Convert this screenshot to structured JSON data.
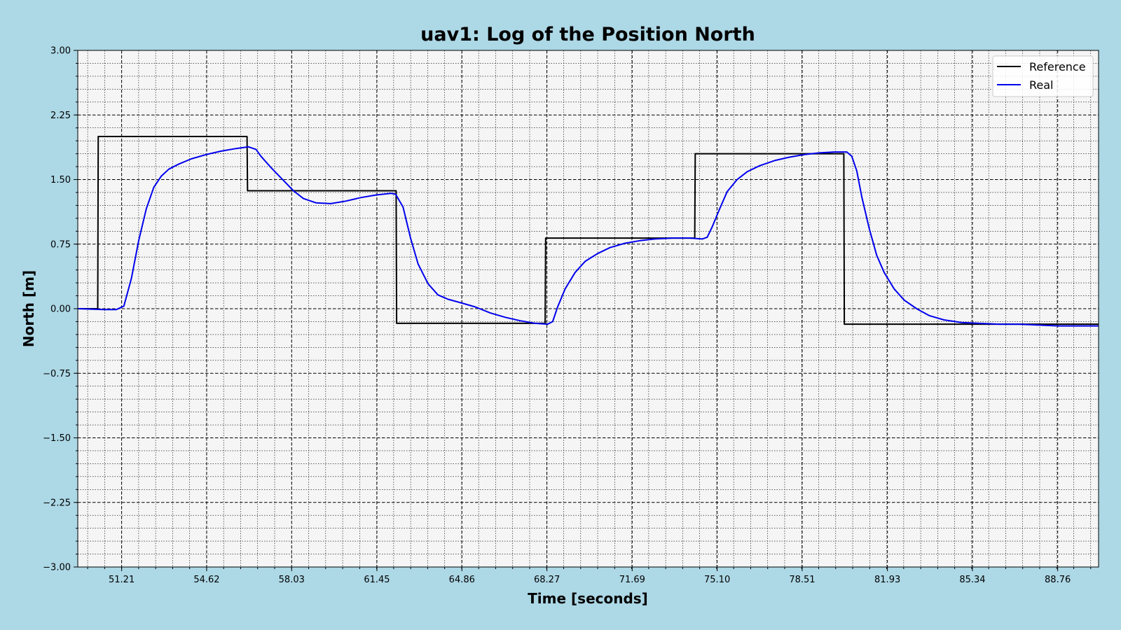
{
  "chart_data": {
    "type": "line",
    "title": "uav1: Log of the Position North",
    "xlabel": "Time [seconds]",
    "ylabel": "North [m]",
    "xlim": [
      49.45,
      90.4
    ],
    "ylim": [
      -3.0,
      3.0
    ],
    "xticks": [
      51.21,
      54.62,
      58.03,
      61.45,
      64.86,
      68.27,
      71.69,
      75.1,
      78.51,
      81.93,
      85.34,
      88.76
    ],
    "xtick_labels": [
      "51.21",
      "54.62",
      "58.03",
      "61.45",
      "64.86",
      "68.27",
      "71.69",
      "75.10",
      "78.51",
      "81.93",
      "85.34",
      "88.76"
    ],
    "yticks": [
      3.0,
      2.25,
      1.5,
      0.75,
      0.0,
      -0.75,
      -1.5,
      -2.25,
      -3.0
    ],
    "ytick_labels": [
      "3.00",
      "2.25",
      "1.50",
      "0.75",
      "0.00",
      "−0.75",
      "−1.50",
      "−2.25",
      "−3.00"
    ],
    "grid": true,
    "legend_position": "top-right",
    "series": [
      {
        "name": "Reference",
        "color": "#000000",
        "x": [
          49.45,
          50.25,
          50.27,
          56.24,
          56.26,
          62.22,
          62.24,
          68.2,
          68.22,
          74.2,
          74.22,
          80.18,
          80.2,
          90.4
        ],
        "y": [
          0.0,
          0.0,
          2.0,
          2.0,
          1.37,
          1.37,
          -0.17,
          -0.17,
          0.82,
          0.82,
          1.8,
          1.8,
          -0.18,
          -0.18
        ]
      },
      {
        "name": "Real",
        "color": "#0000ee",
        "x": [
          49.45,
          50.5,
          51.0,
          51.3,
          51.6,
          51.9,
          52.2,
          52.5,
          52.8,
          53.1,
          53.5,
          54.0,
          54.6,
          55.2,
          55.8,
          56.3,
          56.6,
          56.8,
          57.2,
          57.7,
          58.1,
          58.5,
          59.0,
          59.6,
          60.2,
          60.8,
          61.4,
          62.0,
          62.2,
          62.5,
          62.8,
          63.1,
          63.5,
          63.9,
          64.3,
          64.8,
          65.4,
          66.0,
          66.6,
          67.2,
          67.8,
          68.3,
          68.5,
          68.7,
          69.0,
          69.4,
          69.8,
          70.3,
          70.8,
          71.4,
          72.0,
          72.6,
          73.3,
          74.0,
          74.5,
          74.7,
          74.9,
          75.2,
          75.5,
          75.9,
          76.3,
          76.8,
          77.4,
          78.0,
          78.6,
          79.2,
          79.8,
          80.3,
          80.5,
          80.7,
          80.9,
          81.2,
          81.5,
          81.8,
          82.2,
          82.6,
          83.1,
          83.6,
          84.2,
          84.9,
          85.6,
          86.4,
          87.2,
          88.0,
          88.8,
          89.6,
          90.4
        ],
        "y": [
          0.0,
          -0.01,
          -0.01,
          0.03,
          0.35,
          0.8,
          1.16,
          1.41,
          1.54,
          1.62,
          1.68,
          1.74,
          1.79,
          1.83,
          1.86,
          1.88,
          1.85,
          1.77,
          1.64,
          1.49,
          1.37,
          1.28,
          1.23,
          1.22,
          1.25,
          1.29,
          1.32,
          1.34,
          1.33,
          1.18,
          0.82,
          0.52,
          0.29,
          0.16,
          0.11,
          0.07,
          0.02,
          -0.05,
          -0.1,
          -0.14,
          -0.17,
          -0.18,
          -0.15,
          0.02,
          0.23,
          0.42,
          0.55,
          0.64,
          0.71,
          0.76,
          0.79,
          0.81,
          0.82,
          0.82,
          0.81,
          0.83,
          0.95,
          1.16,
          1.36,
          1.5,
          1.59,
          1.66,
          1.72,
          1.76,
          1.79,
          1.81,
          1.82,
          1.82,
          1.77,
          1.6,
          1.3,
          0.93,
          0.62,
          0.42,
          0.23,
          0.1,
          0.0,
          -0.08,
          -0.13,
          -0.16,
          -0.17,
          -0.18,
          -0.18,
          -0.19,
          -0.2,
          -0.2,
          -0.2
        ]
      }
    ]
  }
}
